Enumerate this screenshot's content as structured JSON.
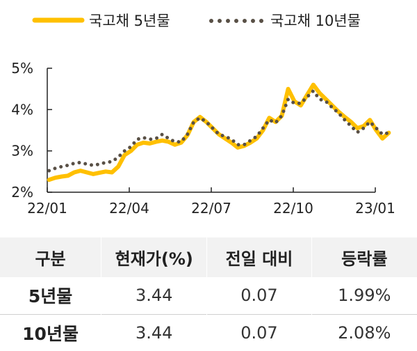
{
  "chart_data": {
    "type": "line",
    "title": "",
    "xlabel": "",
    "ylabel": "",
    "x_ticks": [
      "22/01",
      "22/04",
      "22/07",
      "22/10",
      "23/01"
    ],
    "y_ticks": [
      "2%",
      "3%",
      "4%",
      "5%"
    ],
    "ylim": [
      2,
      5
    ],
    "grid": false,
    "legend_position": "top",
    "colors": {
      "5y": "#FFC000",
      "10y": "#595046",
      "axis": "#222222"
    },
    "series": [
      {
        "name": "국고채 5년물",
        "style": "solid",
        "points": [
          [
            "2022-01-03",
            2.3
          ],
          [
            "2022-01-10",
            2.35
          ],
          [
            "2022-01-17",
            2.38
          ],
          [
            "2022-01-24",
            2.4
          ],
          [
            "2022-01-31",
            2.48
          ],
          [
            "2022-02-07",
            2.52
          ],
          [
            "2022-02-14",
            2.48
          ],
          [
            "2022-02-21",
            2.44
          ],
          [
            "2022-02-28",
            2.47
          ],
          [
            "2022-03-07",
            2.5
          ],
          [
            "2022-03-14",
            2.48
          ],
          [
            "2022-03-21",
            2.62
          ],
          [
            "2022-03-28",
            2.9
          ],
          [
            "2022-04-04",
            3.0
          ],
          [
            "2022-04-11",
            3.15
          ],
          [
            "2022-04-18",
            3.2
          ],
          [
            "2022-04-25",
            3.18
          ],
          [
            "2022-05-02",
            3.22
          ],
          [
            "2022-05-09",
            3.25
          ],
          [
            "2022-05-16",
            3.22
          ],
          [
            "2022-05-23",
            3.15
          ],
          [
            "2022-05-30",
            3.2
          ],
          [
            "2022-06-06",
            3.38
          ],
          [
            "2022-06-13",
            3.7
          ],
          [
            "2022-06-20",
            3.82
          ],
          [
            "2022-06-27",
            3.7
          ],
          [
            "2022-07-04",
            3.55
          ],
          [
            "2022-07-11",
            3.4
          ],
          [
            "2022-07-18",
            3.3
          ],
          [
            "2022-07-25",
            3.2
          ],
          [
            "2022-08-01",
            3.08
          ],
          [
            "2022-08-08",
            3.12
          ],
          [
            "2022-08-15",
            3.2
          ],
          [
            "2022-08-22",
            3.3
          ],
          [
            "2022-08-29",
            3.5
          ],
          [
            "2022-09-05",
            3.8
          ],
          [
            "2022-09-12",
            3.7
          ],
          [
            "2022-09-19",
            3.85
          ],
          [
            "2022-09-26",
            4.5
          ],
          [
            "2022-10-03",
            4.2
          ],
          [
            "2022-10-10",
            4.1
          ],
          [
            "2022-10-17",
            4.35
          ],
          [
            "2022-10-24",
            4.6
          ],
          [
            "2022-10-31",
            4.4
          ],
          [
            "2022-11-07",
            4.25
          ],
          [
            "2022-11-14",
            4.1
          ],
          [
            "2022-11-21",
            3.95
          ],
          [
            "2022-11-28",
            3.82
          ],
          [
            "2022-12-05",
            3.7
          ],
          [
            "2022-12-12",
            3.55
          ],
          [
            "2022-12-19",
            3.6
          ],
          [
            "2022-12-26",
            3.75
          ],
          [
            "2023-01-02",
            3.5
          ],
          [
            "2023-01-09",
            3.3
          ],
          [
            "2023-01-16",
            3.44
          ]
        ]
      },
      {
        "name": "국고채 10년물",
        "style": "dotted",
        "points": [
          [
            "2022-01-03",
            2.52
          ],
          [
            "2022-01-10",
            2.58
          ],
          [
            "2022-01-17",
            2.62
          ],
          [
            "2022-01-24",
            2.65
          ],
          [
            "2022-01-31",
            2.7
          ],
          [
            "2022-02-07",
            2.72
          ],
          [
            "2022-02-14",
            2.68
          ],
          [
            "2022-02-21",
            2.65
          ],
          [
            "2022-02-28",
            2.68
          ],
          [
            "2022-03-07",
            2.72
          ],
          [
            "2022-03-14",
            2.74
          ],
          [
            "2022-03-21",
            2.85
          ],
          [
            "2022-03-28",
            3.0
          ],
          [
            "2022-04-04",
            3.1
          ],
          [
            "2022-04-11",
            3.28
          ],
          [
            "2022-04-18",
            3.32
          ],
          [
            "2022-04-25",
            3.28
          ],
          [
            "2022-05-02",
            3.3
          ],
          [
            "2022-05-09",
            3.4
          ],
          [
            "2022-05-16",
            3.3
          ],
          [
            "2022-05-23",
            3.22
          ],
          [
            "2022-05-30",
            3.22
          ],
          [
            "2022-06-06",
            3.4
          ],
          [
            "2022-06-13",
            3.7
          ],
          [
            "2022-06-20",
            3.8
          ],
          [
            "2022-06-27",
            3.7
          ],
          [
            "2022-07-04",
            3.55
          ],
          [
            "2022-07-11",
            3.4
          ],
          [
            "2022-07-18",
            3.35
          ],
          [
            "2022-07-25",
            3.28
          ],
          [
            "2022-08-01",
            3.15
          ],
          [
            "2022-08-08",
            3.15
          ],
          [
            "2022-08-15",
            3.25
          ],
          [
            "2022-08-22",
            3.35
          ],
          [
            "2022-08-29",
            3.55
          ],
          [
            "2022-09-05",
            3.75
          ],
          [
            "2022-09-12",
            3.68
          ],
          [
            "2022-09-19",
            3.85
          ],
          [
            "2022-09-26",
            4.25
          ],
          [
            "2022-10-03",
            4.15
          ],
          [
            "2022-10-10",
            4.15
          ],
          [
            "2022-10-17",
            4.3
          ],
          [
            "2022-10-24",
            4.45
          ],
          [
            "2022-10-31",
            4.25
          ],
          [
            "2022-11-07",
            4.2
          ],
          [
            "2022-11-14",
            4.05
          ],
          [
            "2022-11-21",
            3.92
          ],
          [
            "2022-11-28",
            3.75
          ],
          [
            "2022-12-05",
            3.6
          ],
          [
            "2022-12-12",
            3.45
          ],
          [
            "2022-12-19",
            3.55
          ],
          [
            "2022-12-26",
            3.7
          ],
          [
            "2023-01-02",
            3.55
          ],
          [
            "2023-01-09",
            3.4
          ],
          [
            "2023-01-16",
            3.44
          ]
        ]
      }
    ]
  },
  "table": {
    "headers": [
      "구분",
      "현재가(%)",
      "전일 대비",
      "등락률"
    ],
    "rows": [
      [
        "5년물",
        "3.44",
        "0.07",
        "1.99%"
      ],
      [
        "10년물",
        "3.44",
        "0.07",
        "2.08%"
      ]
    ]
  }
}
